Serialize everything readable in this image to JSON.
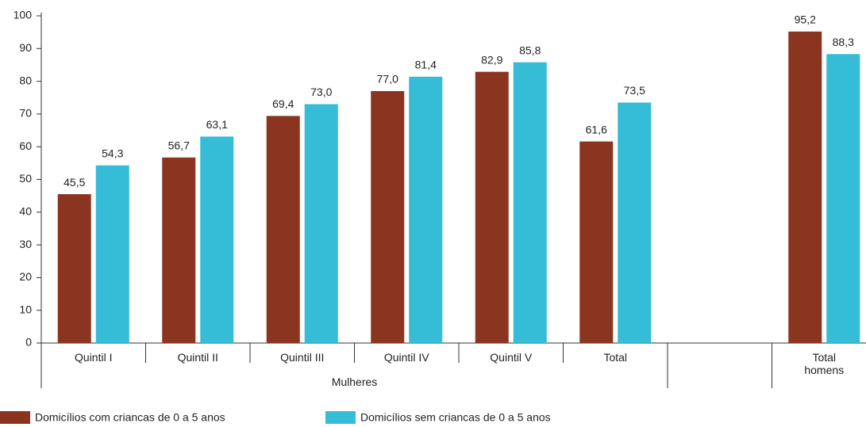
{
  "chart_data": {
    "type": "bar",
    "categories": [
      "Quintil I",
      "Quintil II",
      "Quintil III",
      "Quintil IV",
      "Quintil V",
      "Total",
      null,
      "Total homens"
    ],
    "group_label": "Mulheres",
    "series": [
      {
        "name": "Domicílios com criancas de 0 a 5 anos",
        "color": "#8b3520",
        "values": [
          45.5,
          56.7,
          69.4,
          77.0,
          82.9,
          61.6,
          null,
          95.2
        ],
        "value_labels": [
          "45,5",
          "56,7",
          "69,4",
          "77,0",
          "82,9",
          "61,6",
          null,
          "95,2"
        ]
      },
      {
        "name": "Domicílios sem criancas de 0 a 5 anos",
        "color": "#35bcd6",
        "values": [
          54.3,
          63.1,
          73.0,
          81.4,
          85.8,
          73.5,
          null,
          88.3
        ],
        "value_labels": [
          "54,3",
          "63,1",
          "73,0",
          "81,4",
          "85,8",
          "73,5",
          null,
          "88,3"
        ]
      }
    ],
    "ylim": [
      0,
      100
    ],
    "yticks": [
      0,
      10,
      20,
      30,
      40,
      50,
      60,
      70,
      80,
      90,
      100
    ],
    "grid": false
  }
}
